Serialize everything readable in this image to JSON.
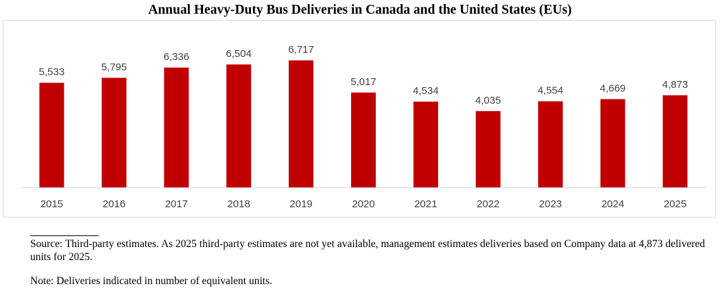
{
  "chart_data": {
    "type": "bar",
    "title": "Annual Heavy-Duty Bus Deliveries in Canada and the United States (EUs)",
    "categories": [
      "2015",
      "2016",
      "2017",
      "2018",
      "2019",
      "2020",
      "2021",
      "2022",
      "2023",
      "2024",
      "2025"
    ],
    "values": [
      5533,
      5795,
      6336,
      6504,
      6717,
      5017,
      4534,
      4035,
      4554,
      4669,
      4873
    ],
    "value_labels": [
      "5,533",
      "5,795",
      "6,336",
      "6,504",
      "6,717",
      "5,017",
      "4,534",
      "4,035",
      "4,554",
      "4,669",
      "4,873"
    ],
    "xlabel": "",
    "ylabel": "",
    "ylim": [
      0,
      7000
    ],
    "grid": false,
    "legend": "none",
    "bar_color": "#c00000"
  },
  "footnotes": {
    "source": "Source: Third-party estimates. As 2025 third-party estimates are not yet available, management estimates deliveries based on Company data at 4,873 delivered units for 2025.",
    "note": "Note: Deliveries indicated in number of equivalent units."
  }
}
